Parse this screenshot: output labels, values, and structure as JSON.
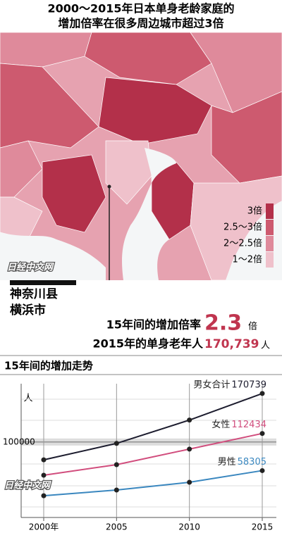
{
  "title": [
    "2000～2015年日本单身老龄家庭的",
    "增加倍率在很多周边城市超过3倍"
  ],
  "map": {
    "legend": [
      {
        "label": "3倍",
        "color": "#b3304a"
      },
      {
        "label": "2.5～3倍",
        "color": "#cd5a6f"
      },
      {
        "label": "2～2.5倍",
        "color": "#df8a9b"
      },
      {
        "label": "1～2倍",
        "color": "#efc1cb"
      }
    ]
  },
  "watermark": "日经中文网",
  "location": [
    "神奈川县",
    "横浜市"
  ],
  "summary": {
    "rate_label": "15年间的增加倍率",
    "rate": "2.3",
    "rate_unit": "倍",
    "count_label": "2015年的单身老年人",
    "count": "170,739",
    "count_unit": "人"
  },
  "chart_data": {
    "type": "line",
    "title": "15年间的增加走势",
    "y_unit": "人",
    "x": [
      2000,
      2005,
      2010,
      2015
    ],
    "xlim": [
      2000,
      2015
    ],
    "xticks": [
      {
        "value": 2000,
        "label": "2000年"
      },
      2005,
      2010,
      2015
    ],
    "ylim": [
      -10000,
      185000
    ],
    "yticks": [
      100000
    ],
    "series": [
      {
        "name": "男女合计",
        "color": "#1c1c2e",
        "label_color": "#1c1c2e",
        "values": [
          74000,
          98000,
          132000,
          170739
        ]
      },
      {
        "name": "女性",
        "color": "#d14d7d",
        "label_color": "#d14d7d",
        "values": [
          51600,
          67000,
          89700,
          112434
        ]
      },
      {
        "name": "男性",
        "color": "#3a87bf",
        "label_color": "#3a87bf",
        "values": [
          21700,
          30000,
          41300,
          58305
        ]
      }
    ]
  }
}
